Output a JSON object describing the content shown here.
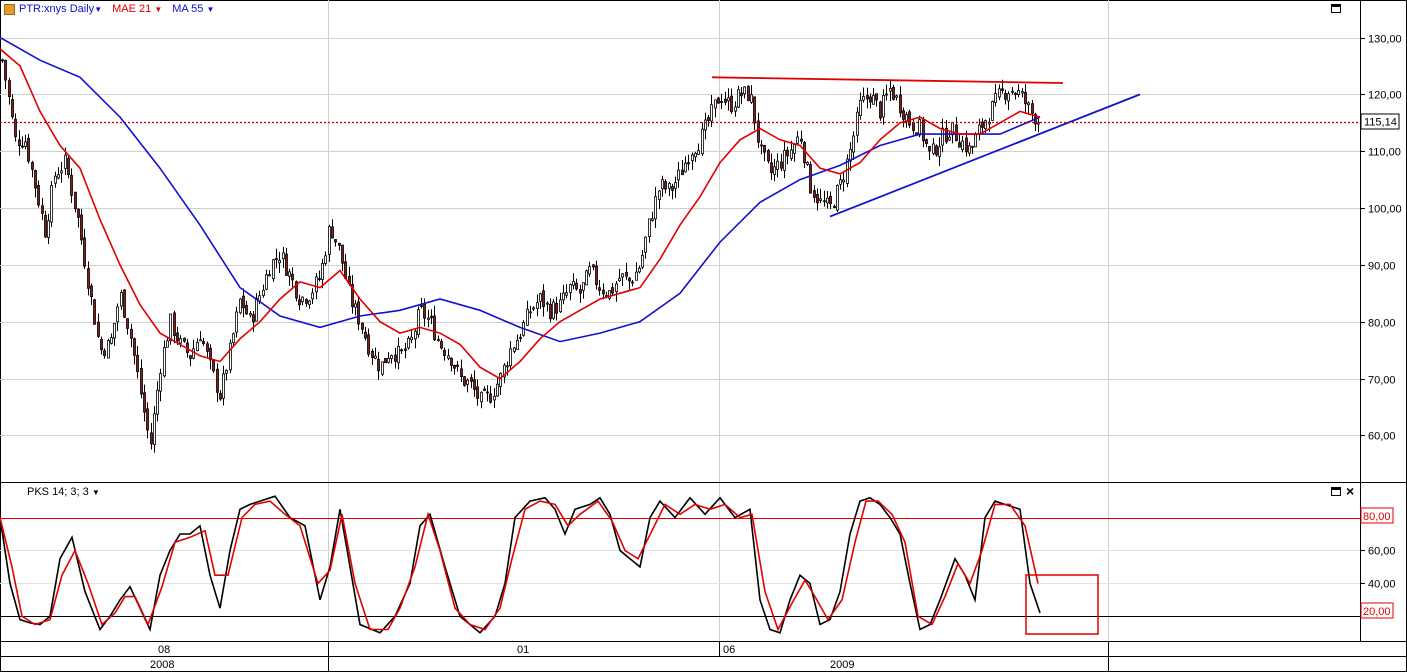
{
  "header": {
    "symbol_label": "PTR:xnys Daily",
    "mae_label": "MAE 21",
    "ma_label": "MA 55",
    "mae_color": "#e00000",
    "ma_color": "#1010d0"
  },
  "oscillator_header": {
    "label": "PKS 14; 3; 3"
  },
  "time_axis": {
    "month_labels": [
      "08",
      "01",
      "06"
    ],
    "year_labels": [
      "2008",
      "2009"
    ]
  },
  "chart_data": [
    {
      "type": "candlestick",
      "title": "PTR:xnys Daily",
      "y_ticks": [
        "60,00",
        "70,00",
        "80,00",
        "90,00",
        "100,00",
        "110,00",
        "120,00",
        "130,00"
      ],
      "y_tick_values": [
        60,
        70,
        80,
        90,
        100,
        110,
        120,
        130
      ],
      "ylim": [
        51.8,
        136.6
      ],
      "grid": true,
      "last_price": 115.14,
      "last_price_label": "115,14",
      "price_anchor_points": [
        [
          0,
          128
        ],
        [
          8,
          120
        ],
        [
          15,
          112
        ],
        [
          25,
          112
        ],
        [
          35,
          104
        ],
        [
          45,
          96
        ],
        [
          55,
          106
        ],
        [
          65,
          108
        ],
        [
          78,
          98
        ],
        [
          90,
          85
        ],
        [
          100,
          75
        ],
        [
          110,
          76
        ],
        [
          120,
          85
        ],
        [
          130,
          78
        ],
        [
          140,
          68
        ],
        [
          150,
          58
        ],
        [
          160,
          72
        ],
        [
          170,
          80
        ],
        [
          180,
          76
        ],
        [
          190,
          74
        ],
        [
          200,
          78
        ],
        [
          210,
          72
        ],
        [
          220,
          67
        ],
        [
          230,
          75
        ],
        [
          240,
          84
        ],
        [
          250,
          80
        ],
        [
          260,
          85
        ],
        [
          270,
          90
        ],
        [
          280,
          92
        ],
        [
          290,
          88
        ],
        [
          300,
          84
        ],
        [
          310,
          85
        ],
        [
          320,
          88
        ],
        [
          330,
          97
        ],
        [
          340,
          92
        ],
        [
          350,
          84
        ],
        [
          360,
          80
        ],
        [
          370,
          75
        ],
        [
          380,
          72
        ],
        [
          390,
          75
        ],
        [
          400,
          74
        ],
        [
          410,
          76
        ],
        [
          420,
          82
        ],
        [
          430,
          80
        ],
        [
          440,
          76
        ],
        [
          450,
          74
        ],
        [
          460,
          70
        ],
        [
          470,
          69
        ],
        [
          480,
          66
        ],
        [
          490,
          67
        ],
        [
          500,
          70
        ],
        [
          510,
          75
        ],
        [
          520,
          78
        ],
        [
          530,
          82
        ],
        [
          540,
          84
        ],
        [
          550,
          82
        ],
        [
          560,
          83
        ],
        [
          570,
          86
        ],
        [
          580,
          85
        ],
        [
          590,
          89
        ],
        [
          600,
          86
        ],
        [
          610,
          85
        ],
        [
          620,
          88
        ],
        [
          630,
          87
        ],
        [
          640,
          90
        ],
        [
          650,
          98
        ],
        [
          660,
          104
        ],
        [
          670,
          103
        ],
        [
          680,
          106
        ],
        [
          690,
          110
        ],
        [
          700,
          112
        ],
        [
          710,
          116
        ],
        [
          720,
          120
        ],
        [
          730,
          118
        ],
        [
          740,
          120
        ],
        [
          750,
          120
        ],
        [
          760,
          110
        ],
        [
          770,
          106
        ],
        [
          780,
          108
        ],
        [
          790,
          110
        ],
        [
          800,
          113
        ],
        [
          810,
          104
        ],
        [
          820,
          101
        ],
        [
          830,
          100
        ],
        [
          840,
          104
        ],
        [
          850,
          110
        ],
        [
          860,
          118
        ],
        [
          870,
          120
        ],
        [
          880,
          117
        ],
        [
          890,
          121
        ],
        [
          900,
          118
        ],
        [
          910,
          115
        ],
        [
          920,
          114
        ],
        [
          930,
          109
        ],
        [
          940,
          112
        ],
        [
          950,
          114
        ],
        [
          960,
          112
        ],
        [
          970,
          110
        ],
        [
          980,
          114
        ],
        [
          990,
          117
        ],
        [
          1000,
          120
        ],
        [
          1010,
          121
        ],
        [
          1020,
          120
        ],
        [
          1030,
          117
        ],
        [
          1040,
          115.14
        ]
      ],
      "mae21_anchor_points": [
        [
          0,
          128
        ],
        [
          20,
          125
        ],
        [
          40,
          117
        ],
        [
          60,
          111
        ],
        [
          80,
          107
        ],
        [
          100,
          98
        ],
        [
          120,
          90
        ],
        [
          140,
          83
        ],
        [
          160,
          78
        ],
        [
          180,
          76
        ],
        [
          200,
          74
        ],
        [
          220,
          73
        ],
        [
          240,
          77
        ],
        [
          260,
          80
        ],
        [
          280,
          84
        ],
        [
          300,
          87
        ],
        [
          320,
          86
        ],
        [
          340,
          89
        ],
        [
          360,
          84
        ],
        [
          380,
          80
        ],
        [
          400,
          78
        ],
        [
          420,
          79
        ],
        [
          440,
          78
        ],
        [
          460,
          76
        ],
        [
          480,
          72
        ],
        [
          500,
          70
        ],
        [
          520,
          73
        ],
        [
          540,
          77
        ],
        [
          560,
          80
        ],
        [
          580,
          82
        ],
        [
          600,
          84
        ],
        [
          620,
          85
        ],
        [
          640,
          86
        ],
        [
          660,
          91
        ],
        [
          680,
          97
        ],
        [
          700,
          102
        ],
        [
          720,
          108
        ],
        [
          740,
          112
        ],
        [
          760,
          114
        ],
        [
          780,
          112
        ],
        [
          800,
          111
        ],
        [
          820,
          107
        ],
        [
          840,
          106
        ],
        [
          860,
          108
        ],
        [
          880,
          112
        ],
        [
          900,
          115
        ],
        [
          920,
          116
        ],
        [
          940,
          114
        ],
        [
          960,
          113
        ],
        [
          980,
          113
        ],
        [
          1000,
          115
        ],
        [
          1020,
          117
        ],
        [
          1040,
          116
        ]
      ],
      "ma55_anchor_points": [
        [
          0,
          130
        ],
        [
          40,
          126
        ],
        [
          80,
          123
        ],
        [
          120,
          116
        ],
        [
          160,
          107
        ],
        [
          200,
          97
        ],
        [
          240,
          86
        ],
        [
          280,
          81
        ],
        [
          320,
          79
        ],
        [
          360,
          81
        ],
        [
          400,
          82
        ],
        [
          440,
          84
        ],
        [
          480,
          82
        ],
        [
          520,
          79
        ],
        [
          560,
          76.5
        ],
        [
          600,
          78
        ],
        [
          640,
          80
        ],
        [
          680,
          85
        ],
        [
          720,
          94
        ],
        [
          760,
          101
        ],
        [
          800,
          105
        ],
        [
          840,
          107.5
        ],
        [
          880,
          111
        ],
        [
          920,
          113
        ],
        [
          960,
          113
        ],
        [
          1000,
          113
        ],
        [
          1040,
          116
        ]
      ],
      "resistance_line": [
        [
          712,
          123
        ],
        [
          1063,
          122
        ]
      ],
      "support_line": [
        [
          830,
          98.5
        ],
        [
          1140,
          120
        ]
      ]
    },
    {
      "type": "line",
      "title": "PKS 14; 3; 3",
      "y_ticks": [
        "20,00",
        "40,00",
        "60,00",
        "80,00"
      ],
      "y_tick_values": [
        20,
        40,
        60,
        80
      ],
      "ylim": [
        5,
        101
      ],
      "reference_lines": [
        80,
        20
      ],
      "percent_k_anchor_points": [
        [
          0,
          80
        ],
        [
          10,
          40
        ],
        [
          20,
          18
        ],
        [
          30,
          16
        ],
        [
          40,
          15
        ],
        [
          50,
          20
        ],
        [
          60,
          55
        ],
        [
          72,
          68
        ],
        [
          85,
          35
        ],
        [
          100,
          12
        ],
        [
          110,
          20
        ],
        [
          120,
          30
        ],
        [
          130,
          38
        ],
        [
          140,
          25
        ],
        [
          150,
          12
        ],
        [
          160,
          45
        ],
        [
          170,
          60
        ],
        [
          180,
          70
        ],
        [
          190,
          70
        ],
        [
          200,
          75
        ],
        [
          210,
          45
        ],
        [
          220,
          25
        ],
        [
          230,
          60
        ],
        [
          240,
          85
        ],
        [
          250,
          88
        ],
        [
          260,
          90
        ],
        [
          275,
          93
        ],
        [
          290,
          80
        ],
        [
          305,
          75
        ],
        [
          320,
          30
        ],
        [
          330,
          50
        ],
        [
          340,
          85
        ],
        [
          350,
          50
        ],
        [
          360,
          15
        ],
        [
          380,
          10
        ],
        [
          395,
          20
        ],
        [
          410,
          40
        ],
        [
          420,
          75
        ],
        [
          430,
          82
        ],
        [
          445,
          50
        ],
        [
          460,
          20
        ],
        [
          470,
          15
        ],
        [
          480,
          10
        ],
        [
          495,
          20
        ],
        [
          505,
          40
        ],
        [
          515,
          80
        ],
        [
          530,
          90
        ],
        [
          545,
          92
        ],
        [
          555,
          85
        ],
        [
          565,
          70
        ],
        [
          575,
          85
        ],
        [
          590,
          88
        ],
        [
          600,
          92
        ],
        [
          610,
          82
        ],
        [
          620,
          60
        ],
        [
          630,
          55
        ],
        [
          640,
          50
        ],
        [
          650,
          80
        ],
        [
          660,
          90
        ],
        [
          675,
          80
        ],
        [
          690,
          92
        ],
        [
          705,
          82
        ],
        [
          720,
          92
        ],
        [
          735,
          80
        ],
        [
          750,
          85
        ],
        [
          760,
          30
        ],
        [
          770,
          12
        ],
        [
          780,
          10
        ],
        [
          790,
          30
        ],
        [
          800,
          45
        ],
        [
          810,
          40
        ],
        [
          820,
          15
        ],
        [
          830,
          18
        ],
        [
          840,
          35
        ],
        [
          850,
          70
        ],
        [
          860,
          90
        ],
        [
          870,
          92
        ],
        [
          880,
          88
        ],
        [
          890,
          80
        ],
        [
          900,
          70
        ],
        [
          910,
          40
        ],
        [
          920,
          12
        ],
        [
          930,
          15
        ],
        [
          940,
          30
        ],
        [
          955,
          55
        ],
        [
          965,
          45
        ],
        [
          975,
          30
        ],
        [
          985,
          80
        ],
        [
          995,
          90
        ],
        [
          1010,
          87
        ],
        [
          1020,
          85
        ],
        [
          1030,
          40
        ],
        [
          1040,
          22
        ]
      ],
      "percent_d_anchor_points": [
        [
          0,
          80
        ],
        [
          12,
          50
        ],
        [
          22,
          20
        ],
        [
          35,
          15
        ],
        [
          50,
          18
        ],
        [
          62,
          45
        ],
        [
          75,
          60
        ],
        [
          88,
          40
        ],
        [
          102,
          15
        ],
        [
          115,
          22
        ],
        [
          125,
          32
        ],
        [
          135,
          32
        ],
        [
          148,
          15
        ],
        [
          162,
          38
        ],
        [
          175,
          65
        ],
        [
          190,
          68
        ],
        [
          205,
          72
        ],
        [
          215,
          45
        ],
        [
          228,
          45
        ],
        [
          242,
          80
        ],
        [
          255,
          88
        ],
        [
          270,
          90
        ],
        [
          285,
          82
        ],
        [
          300,
          75
        ],
        [
          318,
          40
        ],
        [
          330,
          48
        ],
        [
          342,
          82
        ],
        [
          355,
          40
        ],
        [
          370,
          12
        ],
        [
          388,
          12
        ],
        [
          400,
          25
        ],
        [
          415,
          50
        ],
        [
          428,
          82
        ],
        [
          440,
          60
        ],
        [
          455,
          25
        ],
        [
          470,
          15
        ],
        [
          485,
          12
        ],
        [
          500,
          25
        ],
        [
          512,
          55
        ],
        [
          525,
          85
        ],
        [
          540,
          90
        ],
        [
          555,
          88
        ],
        [
          568,
          75
        ],
        [
          580,
          82
        ],
        [
          598,
          90
        ],
        [
          612,
          78
        ],
        [
          625,
          60
        ],
        [
          638,
          55
        ],
        [
          652,
          72
        ],
        [
          665,
          88
        ],
        [
          680,
          82
        ],
        [
          695,
          88
        ],
        [
          710,
          85
        ],
        [
          725,
          88
        ],
        [
          740,
          80
        ],
        [
          752,
          82
        ],
        [
          765,
          35
        ],
        [
          778,
          12
        ],
        [
          792,
          28
        ],
        [
          805,
          42
        ],
        [
          815,
          32
        ],
        [
          828,
          18
        ],
        [
          842,
          30
        ],
        [
          855,
          65
        ],
        [
          866,
          90
        ],
        [
          878,
          90
        ],
        [
          892,
          82
        ],
        [
          905,
          65
        ],
        [
          918,
          20
        ],
        [
          932,
          15
        ],
        [
          945,
          32
        ],
        [
          958,
          52
        ],
        [
          970,
          40
        ],
        [
          982,
          60
        ],
        [
          995,
          88
        ],
        [
          1010,
          88
        ],
        [
          1025,
          75
        ],
        [
          1038,
          40
        ]
      ]
    }
  ]
}
